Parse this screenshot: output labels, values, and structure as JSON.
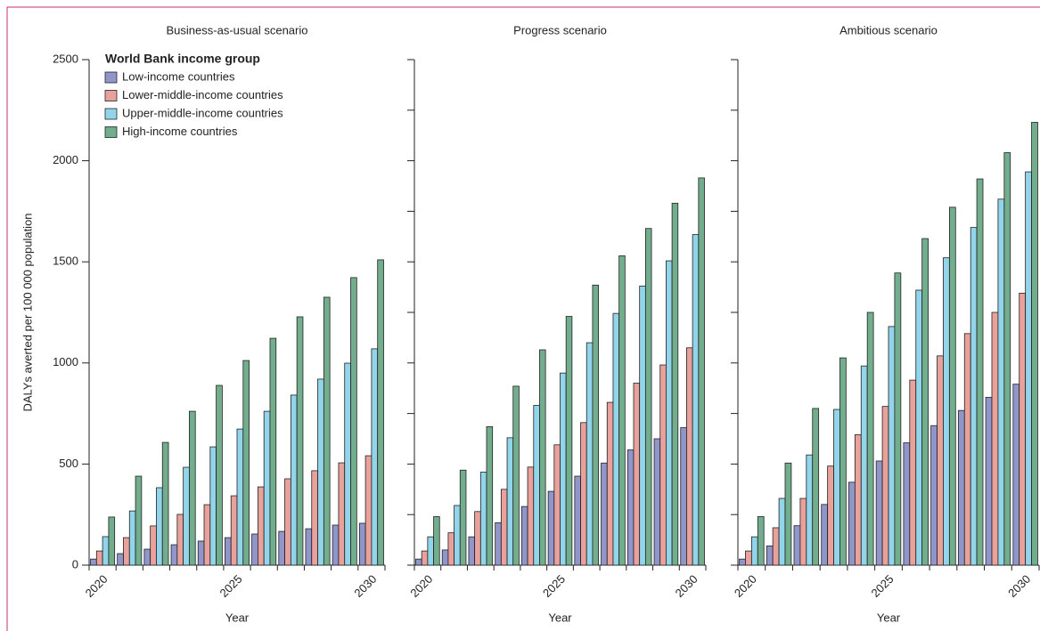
{
  "chart_data": [
    {
      "type": "bar",
      "title": "Business-as-usual scenario",
      "xlabel": "Year",
      "ylabel": "DALYs averted per 100 000 population",
      "categories": [
        "2020",
        null,
        null,
        null,
        null,
        "2025",
        null,
        null,
        null,
        null,
        "2030"
      ],
      "ylim": [
        0,
        2500
      ],
      "yticks": [
        0,
        500,
        1000,
        1500,
        2000,
        2500
      ],
      "ytick_labels": true,
      "legend": "upper left",
      "legend_title": "World Bank income group",
      "series": [
        {
          "name": "Low-income countries",
          "color": "#9096c9",
          "values": [
            30,
            57,
            79,
            101,
            119,
            136,
            154,
            167,
            180,
            198,
            207
          ]
        },
        {
          "name": "Lower-middle-income countries",
          "color": "#e9a19b",
          "values": [
            70,
            136,
            194,
            251,
            299,
            343,
            387,
            427,
            467,
            506,
            541
          ]
        },
        {
          "name": "Upper-middle-income countries",
          "color": "#92d4e9",
          "values": [
            141,
            268,
            383,
            484,
            585,
            673,
            761,
            841,
            920,
            999,
            1070
          ]
        },
        {
          "name": "High-income countries",
          "color": "#72ae8d",
          "values": [
            238,
            440,
            607,
            761,
            889,
            1012,
            1122,
            1228,
            1325,
            1422,
            1510
          ]
        }
      ]
    },
    {
      "type": "bar",
      "title": "Progress scenario",
      "xlabel": "Year",
      "categories": [
        "2020",
        null,
        null,
        null,
        null,
        "2025",
        null,
        null,
        null,
        null,
        "2030"
      ],
      "ylim": [
        0,
        2500
      ],
      "yticks": [
        0,
        250,
        500,
        750,
        1000,
        1250,
        1500,
        1750,
        2000,
        2250,
        2500
      ],
      "ytick_labels": false,
      "series": [
        {
          "color": "#9096c9",
          "values": [
            30,
            75,
            140,
            210,
            290,
            365,
            440,
            505,
            570,
            625,
            680
          ]
        },
        {
          "color": "#e9a19b",
          "values": [
            70,
            160,
            265,
            375,
            485,
            595,
            705,
            805,
            900,
            990,
            1075
          ]
        },
        {
          "color": "#92d4e9",
          "values": [
            140,
            295,
            460,
            630,
            790,
            950,
            1100,
            1245,
            1380,
            1505,
            1635
          ]
        },
        {
          "color": "#72ae8d",
          "values": [
            240,
            470,
            685,
            885,
            1065,
            1230,
            1385,
            1530,
            1665,
            1790,
            1915
          ]
        }
      ]
    },
    {
      "type": "bar",
      "title": "Ambitious scenario",
      "xlabel": "Year",
      "categories": [
        "2020",
        null,
        null,
        null,
        null,
        "2025",
        null,
        null,
        null,
        null,
        "2030"
      ],
      "ylim": [
        0,
        2500
      ],
      "yticks": [
        0,
        250,
        500,
        750,
        1000,
        1250,
        1500,
        1750,
        2000,
        2250,
        2500
      ],
      "ytick_labels": false,
      "series": [
        {
          "color": "#9096c9",
          "values": [
            30,
            95,
            195,
            300,
            410,
            515,
            605,
            690,
            765,
            830,
            895
          ]
        },
        {
          "color": "#e9a19b",
          "values": [
            70,
            185,
            330,
            490,
            645,
            785,
            915,
            1035,
            1145,
            1250,
            1345
          ]
        },
        {
          "color": "#92d4e9",
          "values": [
            140,
            330,
            545,
            770,
            985,
            1180,
            1360,
            1520,
            1670,
            1810,
            1945
          ]
        },
        {
          "color": "#72ae8d",
          "values": [
            240,
            505,
            775,
            1025,
            1250,
            1445,
            1615,
            1770,
            1910,
            2040,
            2190
          ]
        }
      ]
    }
  ]
}
